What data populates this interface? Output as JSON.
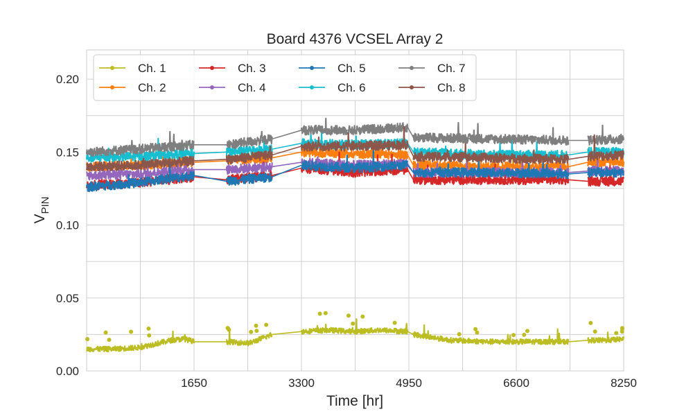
{
  "chart_data": {
    "type": "line",
    "title": "Board 4376 VCSEL Array 2",
    "xlabel": "Time [hr]",
    "ylabel": {
      "base": "V",
      "sub": "PIN"
    },
    "xlim": [
      0,
      8250
    ],
    "ylim": [
      0,
      0.22
    ],
    "xticks": [
      1650,
      3300,
      4950,
      6600,
      8250
    ],
    "xtick_labels": [
      "1650",
      "3300",
      "4950",
      "6600",
      "8250"
    ],
    "yticks": [
      0,
      0.05,
      0.1,
      0.15,
      0.2
    ],
    "ytick_labels": [
      "0.00",
      "0.05",
      "0.10",
      "0.15",
      "0.20"
    ],
    "grid": true,
    "legend": {
      "placement": "upper-left",
      "columns": 4
    },
    "segments": [
      [
        0,
        1650
      ],
      [
        2150,
        2850
      ],
      [
        3300,
        4930
      ],
      [
        5020,
        7400
      ],
      [
        7700,
        8250
      ]
    ],
    "series": [
      {
        "name": "Ch. 1",
        "color": "#bcbd22",
        "x": [
          0,
          400,
          800,
          1100,
          1300,
          1500,
          1650,
          2150,
          2500,
          2850,
          3300,
          3700,
          4100,
          4500,
          4930,
          5020,
          5600,
          6200,
          6800,
          7400,
          7700,
          8000,
          8250
        ],
        "y": [
          0.015,
          0.015,
          0.016,
          0.019,
          0.021,
          0.022,
          0.02,
          0.02,
          0.019,
          0.025,
          0.027,
          0.028,
          0.027,
          0.028,
          0.027,
          0.025,
          0.021,
          0.02,
          0.02,
          0.02,
          0.021,
          0.021,
          0.022
        ]
      },
      {
        "name": "Ch. 2",
        "color": "#ff7f0e",
        "x": [
          0,
          800,
          1650,
          2150,
          2850,
          3300,
          4100,
          4930,
          5020,
          6200,
          7400,
          7700,
          8250
        ],
        "y": [
          0.14,
          0.141,
          0.143,
          0.144,
          0.146,
          0.15,
          0.149,
          0.148,
          0.141,
          0.14,
          0.14,
          0.143,
          0.143
        ]
      },
      {
        "name": "Ch. 3",
        "color": "#d62728",
        "x": [
          0,
          800,
          1650,
          2150,
          2850,
          3300,
          4100,
          4930,
          5020,
          6200,
          7400,
          7700,
          8250
        ],
        "y": [
          0.127,
          0.129,
          0.133,
          0.131,
          0.134,
          0.139,
          0.136,
          0.138,
          0.131,
          0.131,
          0.131,
          0.13,
          0.13
        ]
      },
      {
        "name": "Ch. 4",
        "color": "#9467bd",
        "x": [
          0,
          800,
          1650,
          2150,
          2850,
          3300,
          4100,
          4930,
          5020,
          6200,
          7400,
          7700,
          8250
        ],
        "y": [
          0.134,
          0.135,
          0.138,
          0.138,
          0.14,
          0.143,
          0.141,
          0.142,
          0.136,
          0.136,
          0.136,
          0.137,
          0.137
        ]
      },
      {
        "name": "Ch. 5",
        "color": "#1f77b4",
        "x": [
          0,
          800,
          1650,
          2150,
          2850,
          3300,
          4100,
          4930,
          5020,
          6200,
          7400,
          7700,
          8250
        ],
        "y": [
          0.126,
          0.129,
          0.134,
          0.13,
          0.133,
          0.141,
          0.139,
          0.141,
          0.136,
          0.136,
          0.135,
          0.136,
          0.136
        ]
      },
      {
        "name": "Ch. 6",
        "color": "#17becf",
        "x": [
          0,
          800,
          1650,
          2150,
          2850,
          3300,
          4100,
          4930,
          5020,
          6200,
          7400,
          7700,
          8250
        ],
        "y": [
          0.146,
          0.147,
          0.149,
          0.15,
          0.152,
          0.156,
          0.155,
          0.156,
          0.15,
          0.148,
          0.148,
          0.15,
          0.15
        ]
      },
      {
        "name": "Ch. 7",
        "color": "#7f7f7f",
        "x": [
          0,
          800,
          1650,
          2150,
          2850,
          3300,
          4100,
          4930,
          5020,
          6200,
          7400,
          7700,
          8250
        ],
        "y": [
          0.15,
          0.152,
          0.155,
          0.155,
          0.159,
          0.165,
          0.165,
          0.167,
          0.16,
          0.159,
          0.158,
          0.158,
          0.159
        ]
      },
      {
        "name": "Ch. 8",
        "color": "#8c564b",
        "x": [
          0,
          800,
          1650,
          2150,
          2850,
          3300,
          4100,
          4930,
          5020,
          6200,
          7400,
          7700,
          8250
        ],
        "y": [
          0.14,
          0.141,
          0.144,
          0.145,
          0.148,
          0.154,
          0.154,
          0.155,
          0.147,
          0.146,
          0.145,
          0.147,
          0.148
        ]
      }
    ]
  }
}
